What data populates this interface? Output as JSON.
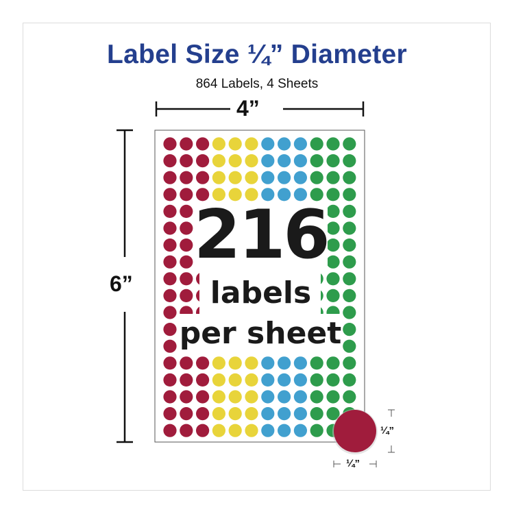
{
  "title": "Label Size ¼” Diameter",
  "subtitle": "864 Labels, 4 Sheets",
  "dimensions": {
    "width": "4”",
    "height": "6”",
    "dot_width": "¼”",
    "dot_height": "¼”"
  },
  "sheet": {
    "count": "216",
    "line1": "labels",
    "line2": "per sheet",
    "rows": 18,
    "columns": 12,
    "column_colors": [
      "#a01c3c",
      "#a01c3c",
      "#a01c3c",
      "#e8d43a",
      "#e8d43a",
      "#e8d43a",
      "#41a0cf",
      "#41a0cf",
      "#41a0cf",
      "#2e9c4c",
      "#2e9c4c",
      "#2e9c4c"
    ]
  },
  "colors": {
    "title": "#243f8e",
    "sample_dot": "#a01c3c"
  }
}
